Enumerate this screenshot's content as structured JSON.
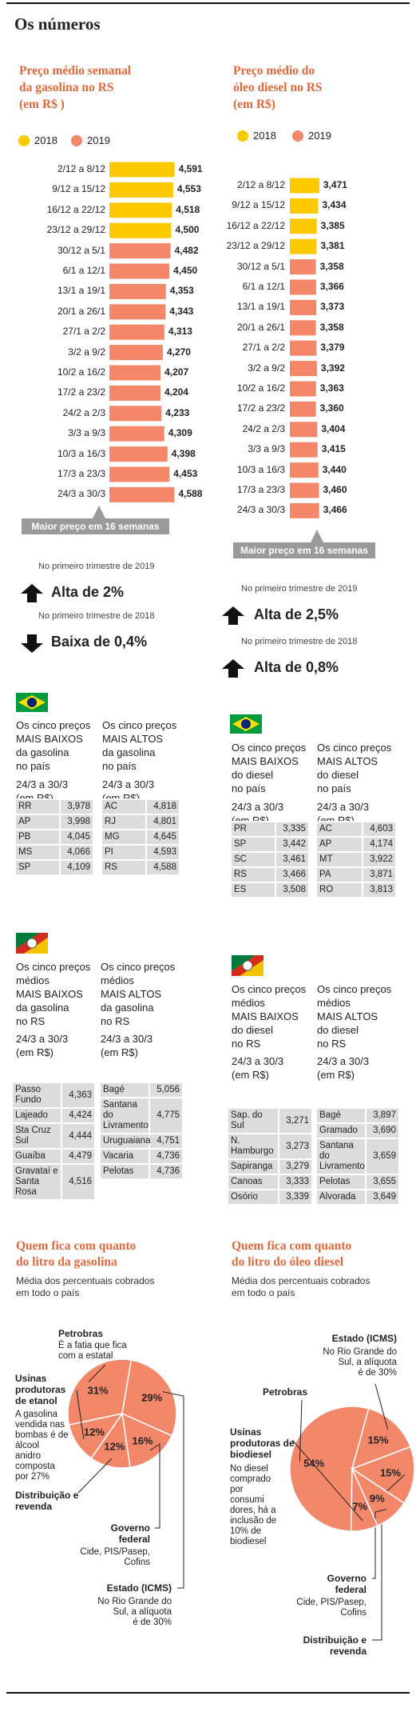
{
  "title": "Os números",
  "chart_data": [
    {
      "type": "bar",
      "title": [
        "Preço médio semanal",
        "da gasolina no RS",
        "(em R$ )"
      ],
      "categories": [
        "2/12 a 8/12",
        "9/12 a 15/12",
        "16/12 a 22/12",
        "23/12 a 29/12",
        "30/12 a 5/1",
        "6/1 a 12/1",
        "13/1 a 19/1",
        "20/1 a 26/1",
        "27/1 a 2/2",
        "3/2 a 9/2",
        "10/2 a 16/2",
        "17/2 a 23/2",
        "24/2 a 2/3",
        "3/3 a 9/3",
        "10/3 a 16/3",
        "17/3 a 23/3",
        "24/3 a 30/3"
      ],
      "series": [
        {
          "name": "2018",
          "color": "#fcc800",
          "values": [
            4.591,
            4.553,
            4.518,
            4.5,
            null,
            null,
            null,
            null,
            null,
            null,
            null,
            null,
            null,
            null,
            null,
            null,
            null
          ],
          "value_labels": [
            "4,591",
            "4,553",
            "4,518",
            "4,500",
            null,
            null,
            null,
            null,
            null,
            null,
            null,
            null,
            null,
            null,
            null,
            null,
            null
          ]
        },
        {
          "name": "2019",
          "color": "#f4876a",
          "values": [
            null,
            null,
            null,
            null,
            4.482,
            4.45,
            4.353,
            4.343,
            4.313,
            4.27,
            4.207,
            4.204,
            4.233,
            4.309,
            4.398,
            4.453,
            4.588
          ],
          "value_labels": [
            null,
            null,
            null,
            null,
            "4,482",
            "4,450",
            "4,353",
            "4,343",
            "4,313",
            "4,270",
            "4,207",
            "4,204",
            "4,233",
            "4,309",
            "4,398",
            "4,453",
            "4,588"
          ]
        }
      ],
      "xlim": [
        2.8,
        4.6
      ],
      "annotation": "Maior preço em 16 semanas"
    },
    {
      "type": "bar",
      "title": [
        "Preço médio do",
        "óleo diesel no RS",
        "(em R$)"
      ],
      "categories": [
        "2/12 a 8/12",
        "9/12 a 15/12",
        "16/12 a 22/12",
        "23/12 a 29/12",
        "30/12 a 5/1",
        "6/1 a 12/1",
        "13/1 a 19/1",
        "20/1 a 26/1",
        "27/1 a 2/2",
        "3/2 a 9/2",
        "10/2 a 16/2",
        "17/2 a 23/2",
        "24/2 a 2/3",
        "3/3 a 9/3",
        "10/3 a 16/3",
        "17/3 a 23/3",
        "24/3 a 30/3"
      ],
      "series": [
        {
          "name": "2018",
          "color": "#fcc800",
          "values": [
            3.471,
            3.434,
            3.385,
            3.381,
            null,
            null,
            null,
            null,
            null,
            null,
            null,
            null,
            null,
            null,
            null,
            null,
            null
          ],
          "value_labels": [
            "3,471",
            "3,434",
            "3,385",
            "3,381",
            null,
            null,
            null,
            null,
            null,
            null,
            null,
            null,
            null,
            null,
            null,
            null,
            null
          ]
        },
        {
          "name": "2019",
          "color": "#f4876a",
          "values": [
            null,
            null,
            null,
            null,
            3.358,
            3.366,
            3.373,
            3.358,
            3.379,
            3.392,
            3.363,
            3.36,
            3.404,
            3.415,
            3.44,
            3.46,
            3.466
          ],
          "value_labels": [
            null,
            null,
            null,
            null,
            "3,358",
            "3,366",
            "3,373",
            "3,358",
            "3,379",
            "3,392",
            "3,363",
            "3,360",
            "3,404",
            "3,415",
            "3,440",
            "3,460",
            "3,466"
          ]
        }
      ],
      "xlim": [
        2.5,
        3.5
      ],
      "annotation": "Maior preço em 16 semanas"
    },
    {
      "type": "pie",
      "title": [
        "Quem fica com quanto",
        "do litro da gasolina"
      ],
      "subtitle": [
        "Média dos percentuais cobrados",
        "em todo o país"
      ],
      "categories": [
        "Petrobras",
        "Estado (ICMS)",
        "Governo federal",
        "Distribuição e revenda",
        "Usinas produtoras de etanol"
      ],
      "notes": [
        [
          "É a fatia que fica",
          "com a estatal"
        ],
        [
          "No Rio Grande do",
          "Sul, a alíquota",
          "é de 30%"
        ],
        [
          "Cide, PIS/Pasep,",
          "Cofins"
        ],
        null,
        [
          "A gasolina",
          "vendida nas",
          "bombas é de",
          "álcool",
          "anidro",
          "composta",
          "por 27%"
        ]
      ],
      "values": [
        31,
        29,
        16,
        12,
        12
      ],
      "value_labels": [
        "31%",
        "29%",
        "16%",
        "12%",
        "12%"
      ],
      "color": "#f2876a"
    },
    {
      "type": "pie",
      "title": [
        "Quem fica com quanto",
        "do litro do óleo diesel"
      ],
      "subtitle": [
        "Média dos percentuais cobrados",
        "em todo o país"
      ],
      "categories": [
        "Petrobras",
        "Estado (ICMS)",
        "Distribuição e revenda",
        "Governo federal",
        "Usinas produtoras de biodiesel"
      ],
      "notes": [
        null,
        [
          "No Rio Grande do",
          "Sul, a alíquota",
          "é de 30%"
        ],
        null,
        [
          "Cide, PIS/Pasep,",
          "Cofins"
        ],
        [
          "No diesel",
          "comprado",
          "por",
          "consumi",
          "dores, há a",
          "inclusão de",
          "10% de",
          "biodiesel"
        ]
      ],
      "values": [
        54,
        15,
        15,
        9,
        7
      ],
      "value_labels": [
        "54%",
        "15%",
        "15%",
        "9%",
        "7%"
      ],
      "color": "#f2876a"
    }
  ],
  "trends": [
    {
      "items": [
        {
          "label": "No primeiro trimestre de 2019",
          "value": "Alta de 2%"
        },
        {
          "label": "No primeiro trimestre de 2018",
          "value": "Baixa de 0,4%"
        }
      ]
    },
    {
      "items": [
        {
          "label": "No primeiro trimestre de 2019",
          "value": "Alta de 2,5%"
        },
        {
          "label": "No primeiro trimestre de 2018",
          "value": "Alta de 0,8%"
        }
      ]
    }
  ],
  "national": [
    {
      "low": {
        "heading": [
          "Os cinco preços",
          "MAIS BAIXOS",
          "da gasolina",
          "no país"
        ],
        "period": [
          "24/3 a 30/3",
          "(em R$)"
        ],
        "rows": [
          [
            "RR",
            "3,978"
          ],
          [
            "AP",
            "3,998"
          ],
          [
            "PB",
            "4,045"
          ],
          [
            "MS",
            "4,066"
          ],
          [
            "SP",
            "4,109"
          ]
        ]
      },
      "high": {
        "heading": [
          "Os cinco preços",
          "MAIS ALTOS",
          "da gasolina",
          "no país"
        ],
        "period": [
          "24/3 a 30/3",
          "(em R$)"
        ],
        "rows": [
          [
            "AC",
            "4,818"
          ],
          [
            "RJ",
            "4,801"
          ],
          [
            "MG",
            "4,645"
          ],
          [
            "PI",
            "4,593"
          ],
          [
            "RS",
            "4,588"
          ]
        ]
      }
    },
    {
      "low": {
        "heading": [
          "Os cinco preços",
          "MAIS BAIXOS",
          "do diesel",
          "no país"
        ],
        "period": [
          "24/3 a 30/3",
          "(em R$)"
        ],
        "rows": [
          [
            "PR",
            "3,335"
          ],
          [
            "SP",
            "3,442"
          ],
          [
            "SC",
            "3,461"
          ],
          [
            "RS",
            "3,466"
          ],
          [
            "ES",
            "3,508"
          ]
        ]
      },
      "high": {
        "heading": [
          "Os cinco preços",
          "MAIS ALTOS",
          "do diesel",
          "no país"
        ],
        "period": [
          "24/3 a 30/3",
          "(em R$)"
        ],
        "rows": [
          [
            "AC",
            "4,603"
          ],
          [
            "AP",
            "4,174"
          ],
          [
            "MT",
            "3,922"
          ],
          [
            "PA",
            "3,871"
          ],
          [
            "RO",
            "3,813"
          ]
        ]
      }
    }
  ],
  "rs": [
    {
      "low": {
        "heading": [
          "Os cinco preços",
          "médios",
          "MAIS BAIXOS",
          "da gasolina",
          "no RS"
        ],
        "period": [
          "24/3 a 30/3",
          "(em R$)"
        ],
        "rows": [
          [
            "Passo Fundo",
            "4,363"
          ],
          [
            "Lajeado",
            "4,424"
          ],
          [
            "Sta Cruz Sul",
            "4,444"
          ],
          [
            "Guaíba",
            "4,479"
          ],
          [
            "Gravataí e Santa Rosa",
            "4,516"
          ]
        ]
      },
      "high": {
        "heading": [
          "Os cinco preços",
          "médios",
          "MAIS ALTOS",
          "da gasolina",
          "no RS"
        ],
        "period": [
          "24/3 a 30/3",
          "(em R$)"
        ],
        "rows": [
          [
            "Bagé",
            "5,056"
          ],
          [
            "Santana do Livramento",
            "4,775"
          ],
          [
            "Uruguaiana",
            "4,751"
          ],
          [
            "Vacaria",
            "4,736"
          ],
          [
            "Pelotas",
            "4,736"
          ]
        ]
      }
    },
    {
      "low": {
        "heading": [
          "Os cinco preços",
          "médios",
          "MAIS BAIXOS",
          "do diesel",
          "no RS"
        ],
        "period": [
          "24/3 a 30/3",
          "(em R$)"
        ],
        "rows": [
          [
            "Sap. do Sul",
            "3,271"
          ],
          [
            "N. Hamburgo",
            "3,273"
          ],
          [
            "Sapiranga",
            "3,279"
          ],
          [
            "Canoas",
            "3,333"
          ],
          [
            "Osório",
            "3,339"
          ]
        ]
      },
      "high": {
        "heading": [
          "Os cinco preços",
          "médios",
          "MAIS ALTOS",
          "do diesel",
          "no RS"
        ],
        "period": [
          "24/3 a 30/3",
          "(em R$)"
        ],
        "rows": [
          [
            "Bagé",
            "3,897"
          ],
          [
            "Gramado",
            "3,690"
          ],
          [
            "Santana do Livramento",
            "3,659"
          ],
          [
            "Pelotas",
            "3,655"
          ],
          [
            "Alvorada",
            "3,649"
          ]
        ]
      }
    }
  ]
}
